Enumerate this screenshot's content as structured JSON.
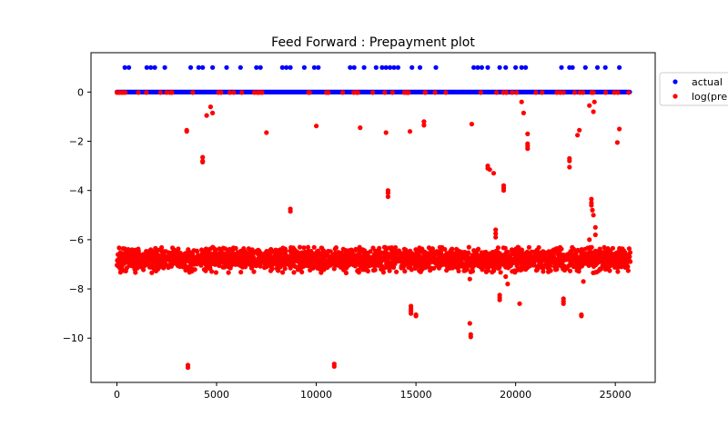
{
  "chart_data": {
    "type": "scatter",
    "title": "Feed Forward : Prepayment plot",
    "xlabel": "",
    "ylabel": "",
    "xlim": [
      -1300,
      27000
    ],
    "ylim": [
      -11.8,
      1.6
    ],
    "xticks": [
      0,
      5000,
      10000,
      15000,
      20000,
      25000
    ],
    "xtick_labels": [
      "0",
      "5000",
      "10000",
      "15000",
      "20000",
      "25000"
    ],
    "yticks": [
      0,
      -2,
      -4,
      -6,
      -8,
      -10
    ],
    "ytick_labels": [
      "0",
      "−2",
      "−4",
      "−6",
      "−8",
      "−10"
    ],
    "grid": false,
    "legend_position": "upper-right-outside",
    "series": [
      {
        "name": "actual",
        "color": "#0000ff",
        "baseline": {
          "y": 0,
          "x_range": [
            0,
            25750
          ]
        },
        "points": [
          [
            400,
            1
          ],
          [
            600,
            1
          ],
          [
            1500,
            1
          ],
          [
            1700,
            1
          ],
          [
            1900,
            1
          ],
          [
            2400,
            1
          ],
          [
            3700,
            1
          ],
          [
            4100,
            1
          ],
          [
            4300,
            1
          ],
          [
            4800,
            1
          ],
          [
            5500,
            1
          ],
          [
            6200,
            1
          ],
          [
            7000,
            1
          ],
          [
            7200,
            1
          ],
          [
            8300,
            1
          ],
          [
            8500,
            1
          ],
          [
            8700,
            1
          ],
          [
            9400,
            1
          ],
          [
            9900,
            1
          ],
          [
            10100,
            1
          ],
          [
            11700,
            1
          ],
          [
            11900,
            1
          ],
          [
            12400,
            1
          ],
          [
            13000,
            1
          ],
          [
            13300,
            1
          ],
          [
            13500,
            1
          ],
          [
            13700,
            1
          ],
          [
            13900,
            1
          ],
          [
            14100,
            1
          ],
          [
            14800,
            1
          ],
          [
            15200,
            1
          ],
          [
            16000,
            1
          ],
          [
            17900,
            1
          ],
          [
            18100,
            1
          ],
          [
            18300,
            1
          ],
          [
            18600,
            1
          ],
          [
            19200,
            1
          ],
          [
            19500,
            1
          ],
          [
            20000,
            1
          ],
          [
            20300,
            1
          ],
          [
            20500,
            1
          ],
          [
            22300,
            1
          ],
          [
            22700,
            1
          ],
          [
            22850,
            1
          ],
          [
            23500,
            1
          ],
          [
            24100,
            1
          ],
          [
            24500,
            1
          ],
          [
            25200,
            1
          ]
        ]
      },
      {
        "name": "log(pre",
        "color": "#ff0000",
        "band": {
          "center": -6.8,
          "spread": 0.22,
          "x_range": [
            0,
            25750
          ]
        },
        "points": [
          [
            0,
            -0.02
          ],
          [
            300,
            -0.02
          ],
          [
            3500,
            -1.6
          ],
          [
            3500,
            -1.55
          ],
          [
            3560,
            -11.2
          ],
          [
            3560,
            -11.1
          ],
          [
            4300,
            -2.65
          ],
          [
            4300,
            -2.8
          ],
          [
            4300,
            -2.85
          ],
          [
            4500,
            -0.95
          ],
          [
            4700,
            -0.6
          ],
          [
            4800,
            -0.85
          ],
          [
            7500,
            -1.65
          ],
          [
            8700,
            -4.75
          ],
          [
            8700,
            -4.85
          ],
          [
            10000,
            -1.38
          ],
          [
            10900,
            -11.05
          ],
          [
            10900,
            -11.15
          ],
          [
            11500,
            -7.35
          ],
          [
            12200,
            -1.45
          ],
          [
            13500,
            -1.65
          ],
          [
            13600,
            -4.0
          ],
          [
            13600,
            -4.1
          ],
          [
            13600,
            -4.25
          ],
          [
            14700,
            -1.6
          ],
          [
            14750,
            -8.7
          ],
          [
            14750,
            -8.8
          ],
          [
            14750,
            -8.9
          ],
          [
            14750,
            -9.0
          ],
          [
            15000,
            -9.05
          ],
          [
            15000,
            -9.1
          ],
          [
            15400,
            -1.2
          ],
          [
            15400,
            -1.35
          ],
          [
            17700,
            -7.6
          ],
          [
            17700,
            -9.4
          ],
          [
            17750,
            -9.85
          ],
          [
            17750,
            -9.95
          ],
          [
            17800,
            -1.3
          ],
          [
            18600,
            -3.0
          ],
          [
            18600,
            -3.1
          ],
          [
            18700,
            -3.15
          ],
          [
            18900,
            -3.3
          ],
          [
            19000,
            -5.6
          ],
          [
            19000,
            -5.75
          ],
          [
            19000,
            -5.9
          ],
          [
            19200,
            -8.25
          ],
          [
            19200,
            -8.35
          ],
          [
            19200,
            -8.45
          ],
          [
            19400,
            -3.8
          ],
          [
            19400,
            -3.9
          ],
          [
            19400,
            -4.0
          ],
          [
            19500,
            -7.5
          ],
          [
            19600,
            -7.8
          ],
          [
            20200,
            -8.6
          ],
          [
            20300,
            -0.4
          ],
          [
            20400,
            -0.85
          ],
          [
            20600,
            -1.7
          ],
          [
            20600,
            -2.1
          ],
          [
            20600,
            -2.2
          ],
          [
            20600,
            -2.3
          ],
          [
            22400,
            -8.4
          ],
          [
            22400,
            -8.5
          ],
          [
            22400,
            -8.6
          ],
          [
            22700,
            -2.7
          ],
          [
            22700,
            -2.8
          ],
          [
            22700,
            -3.05
          ],
          [
            23100,
            -1.75
          ],
          [
            23200,
            -1.55
          ],
          [
            23300,
            -9.05
          ],
          [
            23300,
            -9.1
          ],
          [
            23400,
            -7.7
          ],
          [
            23700,
            -0.55
          ],
          [
            23900,
            -0.8
          ],
          [
            23950,
            -0.4
          ],
          [
            23800,
            -4.35
          ],
          [
            23800,
            -4.5
          ],
          [
            23800,
            -4.6
          ],
          [
            23850,
            -4.8
          ],
          [
            23900,
            -5.0
          ],
          [
            23700,
            -6.0
          ],
          [
            24000,
            -5.5
          ],
          [
            24000,
            -5.8
          ],
          [
            24500,
            -6.4
          ],
          [
            24500,
            -7.2
          ],
          [
            25100,
            -2.05
          ],
          [
            25200,
            -1.5
          ]
        ]
      }
    ]
  },
  "legend": {
    "items": [
      {
        "label": "actual",
        "color": "#0000ff"
      },
      {
        "label": "log(pre",
        "color": "#ff0000"
      }
    ]
  }
}
